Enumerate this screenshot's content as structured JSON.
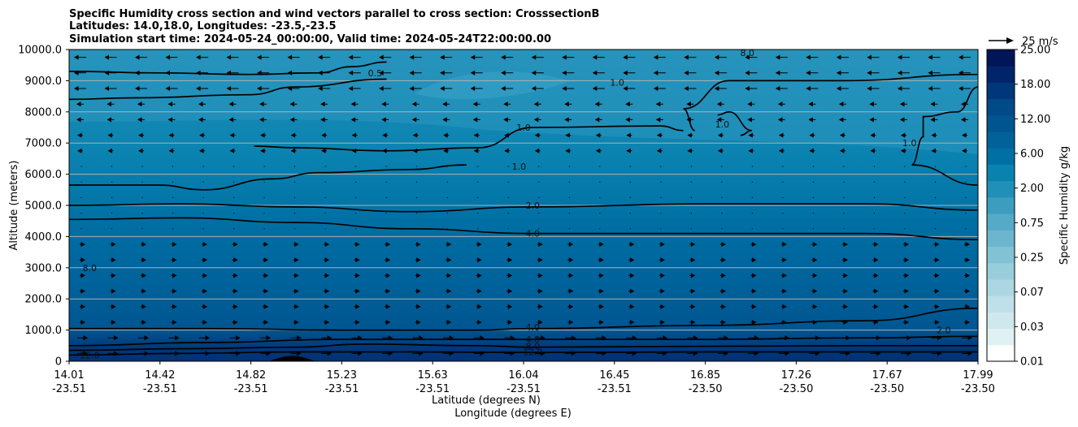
{
  "chart_data": {
    "type": "contour",
    "title_lines": [
      "Specific Humidity cross section and wind vectors parallel to cross section: CrosssectionB",
      "Latitudes: 14.0,18.0, Longitudes: -23.5,-23.5",
      "Simulation start time: 2024-05-24_00:00:00, Valid time: 2024-05-24T22:00:00.00"
    ],
    "ylabel": "Altitude (meters)",
    "xlabel_lines": [
      "Latitude (degrees N)",
      "Longitude (degrees E)"
    ],
    "ylim": [
      0,
      10000
    ],
    "yticks": [
      "0",
      "1000.0",
      "2000.0",
      "3000.0",
      "4000.0",
      "5000.0",
      "6000.0",
      "7000.0",
      "8000.0",
      "9000.0",
      "10000.0"
    ],
    "xticks": [
      {
        "lat": "14.01",
        "lon": "-23.51"
      },
      {
        "lat": "14.42",
        "lon": "-23.51"
      },
      {
        "lat": "14.82",
        "lon": "-23.51"
      },
      {
        "lat": "15.23",
        "lon": "-23.51"
      },
      {
        "lat": "15.63",
        "lon": "-23.51"
      },
      {
        "lat": "16.04",
        "lon": "-23.51"
      },
      {
        "lat": "16.45",
        "lon": "-23.51"
      },
      {
        "lat": "16.85",
        "lon": "-23.50"
      },
      {
        "lat": "17.26",
        "lon": "-23.50"
      },
      {
        "lat": "17.67",
        "lon": "-23.50"
      },
      {
        "lat": "17.99",
        "lon": "-23.50"
      }
    ],
    "grid": "horizontal",
    "colorbar": {
      "label": "Specific Humidity g/kg",
      "levels": [
        0.01,
        0.02,
        0.03,
        0.05,
        0.07,
        0.1,
        0.25,
        0.5,
        0.75,
        1.0,
        2.0,
        4.0,
        6.0,
        8.0,
        12.0,
        15.0,
        18.0,
        22.0,
        25.0
      ],
      "tick_labels": [
        "0.01",
        "0.03",
        "0.07",
        "0.25",
        "0.75",
        "2.00",
        "6.00",
        "12.00",
        "18.00",
        "25.00"
      ],
      "colors": [
        "#ffffff",
        "#e0f1f3",
        "#cfe8ee",
        "#bfe0e8",
        "#acd7e2",
        "#98cddc",
        "#82c2d5",
        "#6bb6ce",
        "#54aac7",
        "#3c9dbf",
        "#2090b8",
        "#0a82b0",
        "#0070a4",
        "#006298",
        "#005590",
        "#004a87",
        "#00377a",
        "#00246a",
        "#001658"
      ]
    },
    "wind_reference": {
      "label": "25 m/s",
      "speed": 25
    },
    "contour_labels": [
      {
        "text": "0.5",
        "lat": 15.35,
        "alt": 9250
      },
      {
        "text": "1.0",
        "lat": 16.0,
        "alt": 7500
      },
      {
        "text": "1.0",
        "lat": 15.98,
        "alt": 6250
      },
      {
        "text": "1.0",
        "lat": 16.41,
        "alt": 8950
      },
      {
        "text": "1.0",
        "lat": 16.87,
        "alt": 7600
      },
      {
        "text": "1.0",
        "lat": 17.69,
        "alt": 7000
      },
      {
        "text": "2.0",
        "lat": 16.04,
        "alt": 5000
      },
      {
        "text": "4.0",
        "lat": 16.04,
        "alt": 4100
      },
      {
        "text": "4.0",
        "lat": 16.04,
        "alt": 1100
      },
      {
        "text": "4.0",
        "lat": 16.04,
        "alt": 700
      },
      {
        "text": "8.0",
        "lat": 16.04,
        "alt": 480
      },
      {
        "text": "12.0",
        "lat": 16.04,
        "alt": 300
      },
      {
        "text": "8.0",
        "lat": 14.1,
        "alt": 3000
      },
      {
        "text": "12.0",
        "lat": 14.1,
        "alt": 200
      },
      {
        "text": "2.0",
        "lat": 17.84,
        "alt": 1000
      },
      {
        "text": "8.0",
        "lat": 16.98,
        "alt": 9900
      }
    ],
    "contour_lines": [
      {
        "level": 0.5,
        "points": [
          [
            14.01,
            9300
          ],
          [
            14.4,
            9250
          ],
          [
            14.8,
            9200
          ],
          [
            15.1,
            9250
          ],
          [
            15.25,
            9450
          ],
          [
            15.4,
            9600
          ]
        ]
      },
      {
        "level": 0.5,
        "points": [
          [
            14.01,
            8400
          ],
          [
            14.3,
            8450
          ],
          [
            14.8,
            8550
          ],
          [
            15.0,
            8800
          ],
          [
            15.4,
            9050
          ]
        ]
      },
      {
        "level": 1.0,
        "points": [
          [
            14.82,
            6900
          ],
          [
            15.0,
            6850
          ],
          [
            15.4,
            6750
          ],
          [
            15.8,
            6850
          ],
          [
            16.04,
            7500
          ],
          [
            16.6,
            7550
          ],
          [
            16.7,
            7400
          ]
        ]
      },
      {
        "level": 1.0,
        "points": [
          [
            16.75,
            7400
          ],
          [
            16.7,
            8100
          ],
          [
            16.9,
            9000
          ],
          [
            17.4,
            9000
          ],
          [
            17.99,
            9200
          ]
        ]
      },
      {
        "level": 1.0,
        "points": [
          [
            16.85,
            7900
          ],
          [
            16.9,
            8000
          ],
          [
            17.0,
            7400
          ],
          [
            16.95,
            7250
          ]
        ]
      },
      {
        "level": 1.0,
        "points": [
          [
            17.99,
            8800
          ],
          [
            17.9,
            8000
          ],
          [
            17.75,
            7850
          ],
          [
            17.75,
            7200
          ],
          [
            17.7,
            6300
          ],
          [
            17.99,
            5650
          ]
        ]
      },
      {
        "level": 1.0,
        "points": [
          [
            14.01,
            5650
          ],
          [
            14.4,
            5650
          ],
          [
            14.6,
            5500
          ],
          [
            14.9,
            5850
          ],
          [
            15.1,
            6050
          ],
          [
            15.5,
            6150
          ],
          [
            15.75,
            6300
          ]
        ]
      },
      {
        "level": 2.0,
        "points": [
          [
            14.01,
            5000
          ],
          [
            14.5,
            5050
          ],
          [
            15.0,
            4950
          ],
          [
            15.5,
            4800
          ],
          [
            16.04,
            4950
          ],
          [
            16.8,
            5050
          ],
          [
            17.5,
            5050
          ],
          [
            17.99,
            4850
          ]
        ]
      },
      {
        "level": 4.0,
        "points": [
          [
            14.01,
            4550
          ],
          [
            14.5,
            4600
          ],
          [
            15.0,
            4450
          ],
          [
            15.5,
            4250
          ],
          [
            16.04,
            4100
          ],
          [
            16.8,
            4100
          ],
          [
            17.5,
            4100
          ],
          [
            17.99,
            3900
          ]
        ]
      },
      {
        "level": 4.0,
        "points": [
          [
            14.01,
            1050
          ],
          [
            14.6,
            1050
          ],
          [
            15.2,
            1000
          ],
          [
            15.8,
            1000
          ],
          [
            16.04,
            1050
          ],
          [
            16.8,
            1150
          ],
          [
            17.5,
            1300
          ],
          [
            17.99,
            1700
          ]
        ]
      },
      {
        "level": 4.0,
        "points": [
          [
            14.01,
            500
          ],
          [
            14.6,
            600
          ],
          [
            15.2,
            700
          ],
          [
            15.8,
            700
          ],
          [
            16.04,
            700
          ],
          [
            16.8,
            700
          ],
          [
            17.5,
            750
          ],
          [
            17.99,
            800
          ]
        ]
      },
      {
        "level": 8.0,
        "points": [
          [
            14.01,
            350
          ],
          [
            14.5,
            400
          ],
          [
            15.0,
            450
          ],
          [
            15.3,
            550
          ],
          [
            15.8,
            500
          ],
          [
            16.04,
            450
          ],
          [
            16.8,
            480
          ],
          [
            17.5,
            500
          ],
          [
            17.99,
            500
          ]
        ]
      },
      {
        "level": 12.0,
        "points": [
          [
            14.01,
            200
          ],
          [
            14.5,
            250
          ],
          [
            15.0,
            300
          ],
          [
            15.5,
            300
          ],
          [
            16.04,
            280
          ],
          [
            16.8,
            300
          ],
          [
            17.5,
            300
          ],
          [
            17.99,
            300
          ]
        ]
      }
    ]
  }
}
